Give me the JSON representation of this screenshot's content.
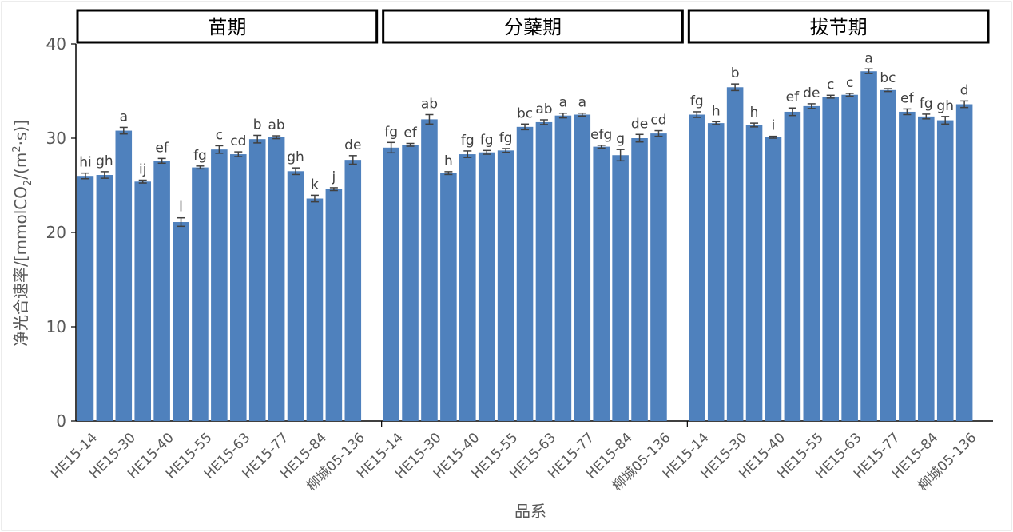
{
  "chart_data": {
    "type": "bar",
    "ylabel_parts": [
      "净光合速率/[mmolCO",
      "2",
      "/(m",
      "2",
      "·s)]"
    ],
    "xlabel": "品系",
    "ylim": [
      0,
      40
    ],
    "yticks": [
      "0",
      "10",
      "20",
      "30",
      "40"
    ],
    "bar_color": "#4f81bd",
    "tick_labels": [
      "HE15-14",
      "HE15-30",
      "HE15-40",
      "HE15-55",
      "HE15-63",
      "HE15-77",
      "HE15-84",
      "柳城05-136"
    ],
    "panels": [
      {
        "title": "苗期",
        "values": [
          26.0,
          26.1,
          30.8,
          25.4,
          27.6,
          21.1,
          26.9,
          28.8,
          28.3,
          29.9,
          30.1,
          26.5,
          23.6,
          24.6,
          27.7
        ],
        "errors": [
          0.3,
          0.35,
          0.35,
          0.15,
          0.25,
          0.45,
          0.15,
          0.4,
          0.25,
          0.4,
          0.15,
          0.35,
          0.35,
          0.15,
          0.45
        ],
        "letters": [
          "hi",
          "gh",
          "a",
          "ij",
          "ef",
          "l",
          "fg",
          "c",
          "cd",
          "b",
          "ab",
          "gh",
          "k",
          "j",
          "de"
        ]
      },
      {
        "title": "分蘖期",
        "values": [
          29.0,
          29.3,
          32.0,
          26.3,
          28.3,
          28.5,
          28.7,
          31.2,
          31.7,
          32.4,
          32.5,
          29.1,
          28.2,
          30.0,
          30.5
        ],
        "errors": [
          0.55,
          0.15,
          0.5,
          0.15,
          0.35,
          0.2,
          0.2,
          0.3,
          0.25,
          0.25,
          0.15,
          0.15,
          0.6,
          0.4,
          0.3
        ],
        "letters": [
          "fg",
          "ef",
          "ab",
          "h",
          "fg",
          "fg",
          "fg",
          "bc",
          "ab",
          "a",
          "a",
          "efg",
          "g",
          "de",
          "cd"
        ]
      },
      {
        "title": "拔节期",
        "values": [
          32.5,
          31.6,
          35.4,
          31.4,
          30.1,
          32.8,
          33.4,
          34.4,
          34.6,
          37.1,
          35.1,
          32.8,
          32.3,
          31.9,
          33.6
        ],
        "errors": [
          0.3,
          0.15,
          0.35,
          0.2,
          0.1,
          0.4,
          0.25,
          0.15,
          0.15,
          0.25,
          0.15,
          0.3,
          0.25,
          0.4,
          0.35
        ],
        "letters": [
          "fg",
          "h",
          "b",
          "h",
          "i",
          "ef",
          "de",
          "c",
          "c",
          "a",
          "bc",
          "ef",
          "fg",
          "gh",
          "d"
        ]
      }
    ]
  }
}
